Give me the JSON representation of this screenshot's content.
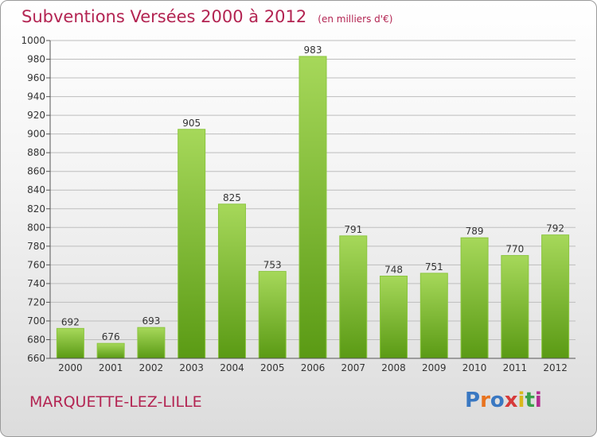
{
  "header": {
    "title": "Subventions Versées 2000 à 2012",
    "subtitle": "(en milliers d'€)"
  },
  "footer": {
    "commune": "MARQUETTE-LEZ-LILLE",
    "logo": "Proxiti",
    "logo_colors": [
      "#3a78c2",
      "#e8731f",
      "#3a78c2",
      "#d63a3a",
      "#d9b81c",
      "#3aa04a",
      "#b32d8f"
    ]
  },
  "colors": {
    "title": "#b32452",
    "bar_top": "#a6d85a",
    "bar_bottom": "#5a9a14",
    "grid": "#bdbdbd"
  },
  "chart_data": {
    "type": "bar",
    "categories": [
      "2000",
      "2001",
      "2002",
      "2003",
      "2004",
      "2005",
      "2006",
      "2007",
      "2008",
      "2009",
      "2010",
      "2011",
      "2012"
    ],
    "values": [
      692,
      676,
      693,
      905,
      825,
      753,
      983,
      791,
      748,
      751,
      789,
      770,
      792
    ],
    "ylim": [
      660,
      1000
    ],
    "ytick_step": 20,
    "grid": true
  }
}
